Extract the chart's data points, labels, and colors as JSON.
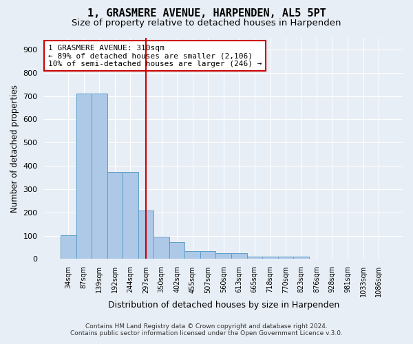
{
  "title": "1, GRASMERE AVENUE, HARPENDEN, AL5 5PT",
  "subtitle": "Size of property relative to detached houses in Harpenden",
  "xlabel": "Distribution of detached houses by size in Harpenden",
  "ylabel": "Number of detached properties",
  "categories": [
    "34sqm",
    "87sqm",
    "139sqm",
    "192sqm",
    "244sqm",
    "297sqm",
    "350sqm",
    "402sqm",
    "455sqm",
    "507sqm",
    "560sqm",
    "613sqm",
    "665sqm",
    "718sqm",
    "770sqm",
    "823sqm",
    "876sqm",
    "928sqm",
    "981sqm",
    "1033sqm",
    "1086sqm"
  ],
  "values": [
    101,
    710,
    710,
    375,
    375,
    207,
    97,
    72,
    35,
    35,
    25,
    25,
    10,
    10,
    10,
    10,
    0,
    0,
    0,
    0,
    0
  ],
  "bar_color": "#aec8e8",
  "bar_edge_color": "#5a9ec9",
  "vline_x": 5.0,
  "vline_color": "#cc0000",
  "annotation_text": "1 GRASMERE AVENUE: 310sqm\n← 89% of detached houses are smaller (2,106)\n10% of semi-detached houses are larger (246) →",
  "annotation_box_color": "#ffffff",
  "annotation_box_edge_color": "#cc0000",
  "ylim": [
    0,
    950
  ],
  "yticks": [
    0,
    100,
    200,
    300,
    400,
    500,
    600,
    700,
    800,
    900
  ],
  "background_color": "#e8eef5",
  "footer_line1": "Contains HM Land Registry data © Crown copyright and database right 2024.",
  "footer_line2": "Contains public sector information licensed under the Open Government Licence v.3.0.",
  "title_fontsize": 11,
  "subtitle_fontsize": 9.5,
  "annotation_fontsize": 8,
  "ylabel_fontsize": 8.5,
  "xlabel_fontsize": 9
}
